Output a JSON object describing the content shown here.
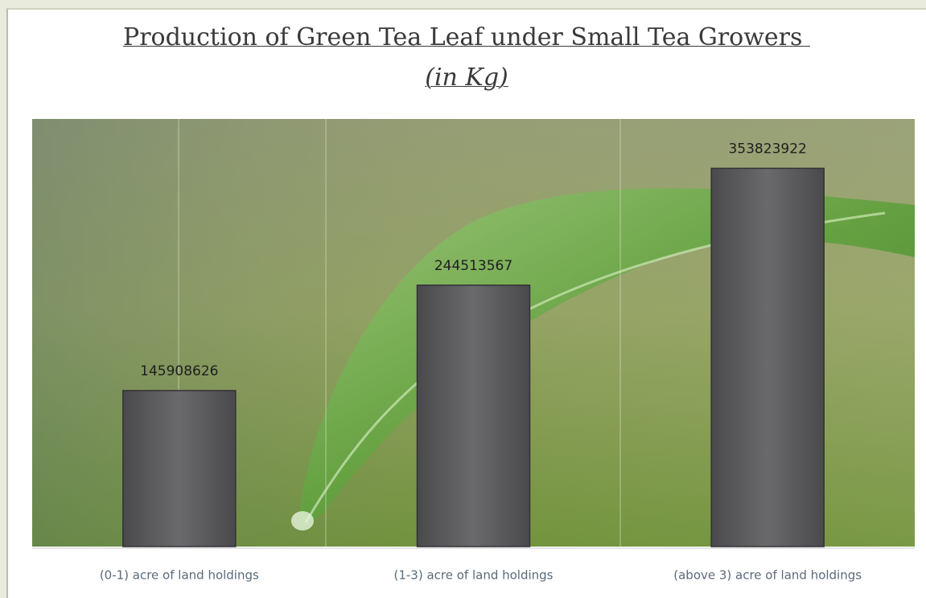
{
  "chart_data": {
    "type": "bar",
    "title": "Production of Green Tea Leaf under Small Tea Growers",
    "unit_label": "(in Kg)",
    "categories": [
      "(0-1) acre of land holdings",
      "(1-3) acre of land holdings",
      "(above 3) acre of land holdings"
    ],
    "values": [
      145908626,
      244513567,
      353823922
    ],
    "color": "#5e5d60",
    "ylim": [
      0,
      400000000
    ]
  }
}
